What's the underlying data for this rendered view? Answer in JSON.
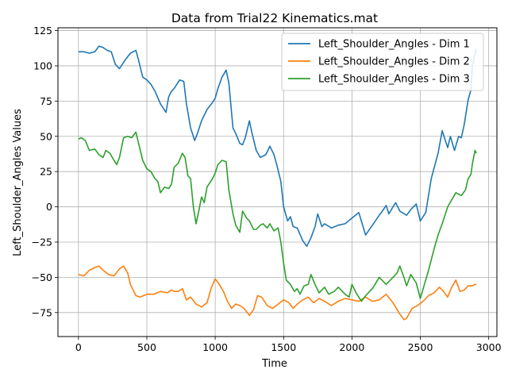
{
  "chart_data": {
    "type": "line",
    "title": "Data from Trial22 Kinematics.mat",
    "xlabel": "Time",
    "ylabel": "Left_Shoulder_Angles Values",
    "xlim": [
      -150,
      3060
    ],
    "ylim": [
      -92,
      127
    ],
    "xticks": [
      0,
      500,
      1000,
      1500,
      2000,
      2500,
      3000
    ],
    "yticks": [
      -75,
      -50,
      -25,
      0,
      25,
      50,
      75,
      100,
      125
    ],
    "grid": true,
    "legend_position": "top-right",
    "colors": [
      "#1f77b4",
      "#ff7f0e",
      "#2ca02c"
    ],
    "series": [
      {
        "name": "Left_Shoulder_Angles - Dim 1",
        "x": [
          0,
          40,
          80,
          120,
          150,
          180,
          210,
          240,
          270,
          300,
          340,
          380,
          420,
          440,
          470,
          500,
          530,
          560,
          600,
          640,
          660,
          680,
          700,
          720,
          740,
          770,
          790,
          820,
          850,
          870,
          900,
          940,
          980,
          1000,
          1020,
          1050,
          1080,
          1100,
          1130,
          1150,
          1180,
          1200,
          1220,
          1250,
          1270,
          1300,
          1330,
          1370,
          1400,
          1430,
          1450,
          1480,
          1500,
          1530,
          1550,
          1570,
          1600,
          1640,
          1670,
          1700,
          1730,
          1750,
          1780,
          1800,
          1850,
          1900,
          1950,
          2000,
          2050,
          2100,
          2150,
          2200,
          2230,
          2250,
          2270,
          2300,
          2320,
          2350,
          2400,
          2430,
          2470,
          2500,
          2540,
          2580,
          2630,
          2660,
          2700,
          2720,
          2750,
          2780,
          2800,
          2820,
          2850,
          2870,
          2880,
          2900,
          2910
        ],
        "values": [
          110,
          110,
          109,
          110,
          114,
          113,
          111,
          110,
          101,
          98,
          104,
          109,
          111,
          104,
          92,
          90,
          87,
          82,
          73,
          67,
          78,
          82,
          84,
          87,
          90,
          89,
          73,
          56,
          47,
          52,
          61,
          69,
          74,
          77,
          84,
          92,
          97,
          88,
          56,
          52,
          45,
          44,
          49,
          61,
          52,
          40,
          35,
          37,
          43,
          37,
          30,
          18,
          0,
          -10,
          -7,
          -14,
          -15,
          -24,
          -28,
          -22,
          -14,
          -5,
          -14,
          -12,
          -15,
          -13,
          -12,
          -8,
          -4,
          -20,
          -13,
          -6,
          -2,
          1,
          -5,
          0,
          3,
          -3,
          -6,
          -2,
          2,
          -10,
          -4,
          20,
          38,
          54,
          42,
          50,
          40,
          50,
          49,
          58,
          76,
          83,
          100,
          108,
          112
        ]
      },
      {
        "name": "Left_Shoulder_Angles - Dim 2",
        "x": [
          0,
          40,
          80,
          120,
          150,
          180,
          220,
          260,
          300,
          330,
          360,
          380,
          420,
          450,
          500,
          550,
          600,
          650,
          680,
          700,
          730,
          760,
          790,
          820,
          860,
          900,
          940,
          970,
          1000,
          1030,
          1060,
          1090,
          1120,
          1150,
          1180,
          1210,
          1250,
          1280,
          1310,
          1340,
          1380,
          1420,
          1460,
          1500,
          1540,
          1570,
          1600,
          1640,
          1680,
          1720,
          1760,
          1800,
          1850,
          1900,
          1950,
          2000,
          2050,
          2100,
          2150,
          2200,
          2250,
          2300,
          2350,
          2380,
          2400,
          2440,
          2480,
          2520,
          2560,
          2600,
          2640,
          2670,
          2700,
          2730,
          2760,
          2790,
          2820,
          2850,
          2880,
          2900,
          2910
        ],
        "values": [
          -48,
          -49,
          -45,
          -43,
          -42,
          -45,
          -48,
          -49,
          -44,
          -42,
          -47,
          -55,
          -63,
          -64,
          -62,
          -62,
          -60,
          -61,
          -59,
          -60,
          -60,
          -58,
          -66,
          -64,
          -69,
          -71,
          -68,
          -58,
          -51,
          -55,
          -60,
          -67,
          -72,
          -69,
          -70,
          -72,
          -77,
          -73,
          -63,
          -64,
          -70,
          -72,
          -69,
          -66,
          -68,
          -72,
          -69,
          -66,
          -64,
          -68,
          -65,
          -67,
          -70,
          -67,
          -65,
          -66,
          -67,
          -64,
          -67,
          -66,
          -62,
          -68,
          -76,
          -80,
          -79,
          -72,
          -70,
          -67,
          -63,
          -61,
          -57,
          -60,
          -64,
          -57,
          -52,
          -60,
          -59,
          -56,
          -56,
          -55,
          -55
        ]
      },
      {
        "name": "Left_Shoulder_Angles - Dim 3",
        "x": [
          0,
          20,
          50,
          80,
          120,
          150,
          180,
          200,
          230,
          260,
          280,
          300,
          330,
          360,
          390,
          420,
          440,
          470,
          500,
          530,
          560,
          580,
          600,
          630,
          660,
          680,
          700,
          730,
          760,
          780,
          800,
          820,
          840,
          860,
          880,
          900,
          920,
          940,
          960,
          980,
          1000,
          1020,
          1050,
          1080,
          1100,
          1130,
          1150,
          1180,
          1200,
          1230,
          1250,
          1280,
          1300,
          1330,
          1350,
          1380,
          1400,
          1430,
          1460,
          1480,
          1500,
          1520,
          1550,
          1580,
          1600,
          1620,
          1650,
          1680,
          1700,
          1730,
          1760,
          1800,
          1830,
          1870,
          1900,
          1950,
          1980,
          2000,
          2030,
          2070,
          2100,
          2150,
          2200,
          2250,
          2300,
          2330,
          2350,
          2380,
          2400,
          2430,
          2470,
          2500,
          2530,
          2560,
          2600,
          2630,
          2660,
          2700,
          2730,
          2760,
          2800,
          2830,
          2850,
          2870,
          2880,
          2900,
          2910
        ],
        "values": [
          48,
          49,
          47,
          40,
          41,
          37,
          35,
          40,
          38,
          33,
          30,
          35,
          49,
          50,
          49,
          53,
          45,
          33,
          27,
          25,
          20,
          18,
          10,
          14,
          13,
          16,
          28,
          31,
          38,
          35,
          22,
          20,
          0,
          -12,
          -3,
          7,
          3,
          14,
          17,
          20,
          24,
          30,
          33,
          32,
          12,
          -5,
          -13,
          -18,
          -3,
          -8,
          -10,
          -16,
          -16,
          -13,
          -12,
          -15,
          -12,
          -17,
          -15,
          -25,
          -40,
          -52,
          -55,
          -60,
          -58,
          -62,
          -56,
          -55,
          -48,
          -55,
          -61,
          -57,
          -62,
          -60,
          -57,
          -62,
          -64,
          -55,
          -61,
          -67,
          -63,
          -58,
          -50,
          -55,
          -50,
          -47,
          -42,
          -50,
          -56,
          -48,
          -54,
          -65,
          -55,
          -45,
          -30,
          -20,
          -12,
          0,
          5,
          10,
          8,
          12,
          20,
          23,
          30,
          40,
          38
        ]
      }
    ]
  }
}
